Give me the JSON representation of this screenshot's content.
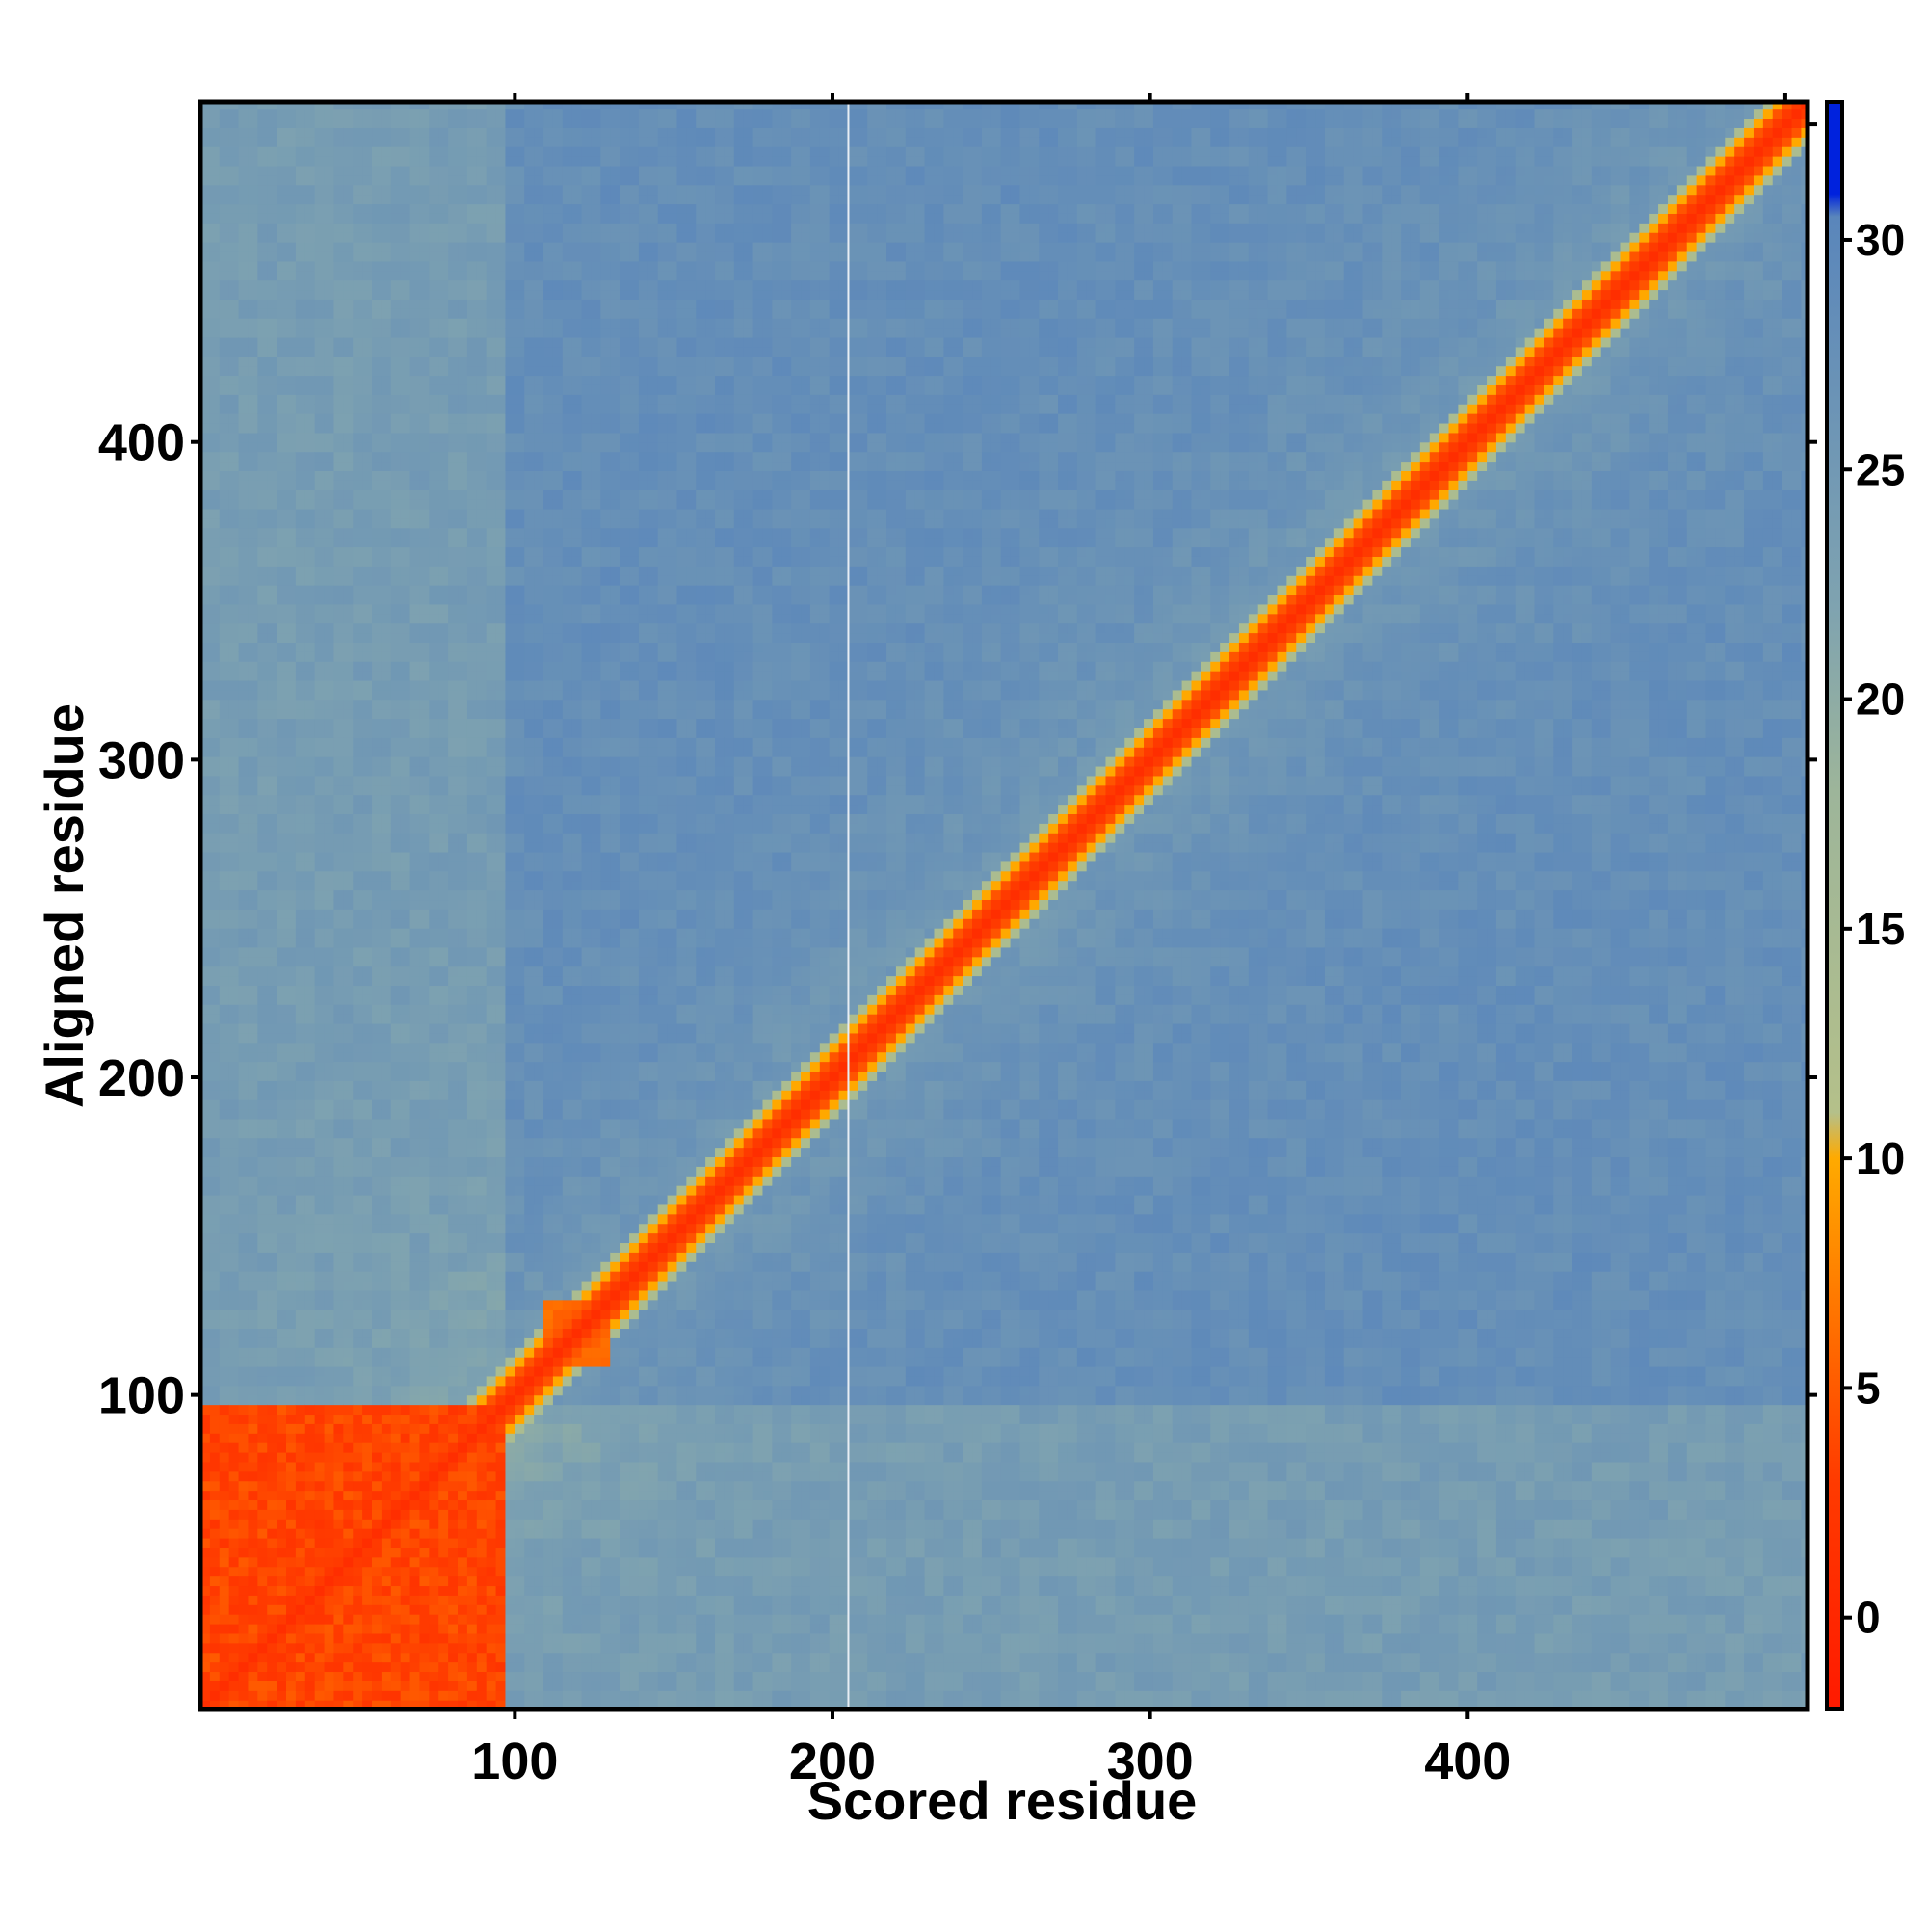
{
  "chart_data": {
    "type": "heatmap",
    "title": "",
    "xlabel": "Scored residue",
    "ylabel": "Aligned residue",
    "xlim": [
      1,
      507
    ],
    "ylim": [
      1,
      507
    ],
    "x_ticks": [
      100,
      200,
      300,
      400
    ],
    "y_ticks": [
      100,
      200,
      300,
      400
    ],
    "x_top_ticks": [
      100,
      200,
      300,
      400,
      500
    ],
    "y_right_ticks": [
      100,
      200,
      300,
      400,
      500
    ],
    "colorbar": {
      "ticks": [
        0,
        5,
        10,
        15,
        20,
        25,
        30
      ],
      "range": [
        -2,
        33
      ],
      "stops": [
        {
          "value": -2,
          "color": "#ff1a00"
        },
        {
          "value": 3,
          "color": "#ff3b00"
        },
        {
          "value": 6,
          "color": "#ff6a00"
        },
        {
          "value": 10,
          "color": "#ffaa00"
        },
        {
          "value": 11,
          "color": "#b4c08a"
        },
        {
          "value": 18,
          "color": "#9db59a"
        },
        {
          "value": 22,
          "color": "#7fa3b0"
        },
        {
          "value": 30.5,
          "color": "#5a86bb"
        },
        {
          "value": 31,
          "color": "#0022dd"
        },
        {
          "value": 33,
          "color": "#0022dd"
        }
      ]
    },
    "n_residues": 507,
    "features": {
      "diagonal": "low error along x = y",
      "n_terminal_block": {
        "from": 1,
        "to": 95,
        "level": 2
      },
      "small_block": {
        "from": 110,
        "to": 130,
        "level": 5
      },
      "background_level": 28,
      "gap_column": 205
    }
  }
}
